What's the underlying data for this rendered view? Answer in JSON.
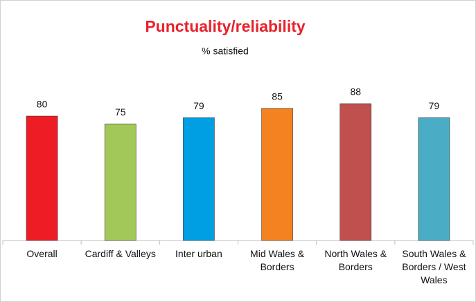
{
  "chart_data": {
    "type": "bar",
    "title": "Punctuality/reliability",
    "subtitle": "% satisfied",
    "categories": [
      "Overall",
      "Cardiff & Valleys",
      "Inter urban",
      "Mid Wales & Borders",
      "North Wales & Borders",
      "South Wales & Borders / West Wales"
    ],
    "values": [
      80,
      75,
      79,
      85,
      88,
      79
    ],
    "colors": [
      "#ee1c25",
      "#a3c85a",
      "#009fe3",
      "#f58220",
      "#c0504d",
      "#4bacc6"
    ],
    "ylim": [
      0,
      100
    ]
  }
}
